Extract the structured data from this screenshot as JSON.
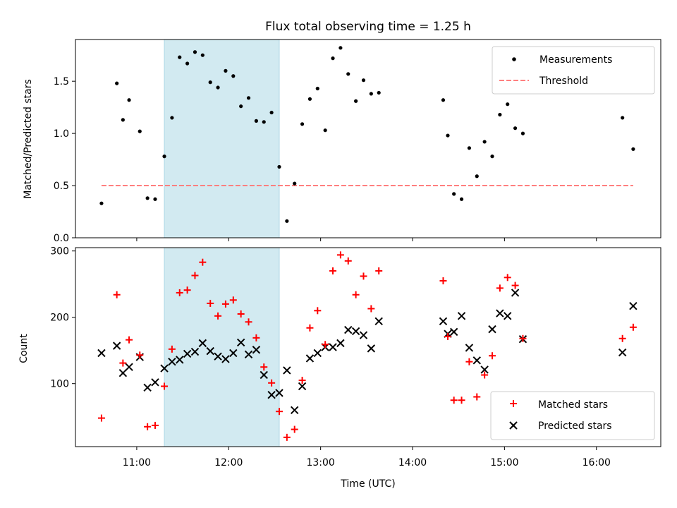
{
  "chart_data": [
    {
      "type": "scatter",
      "title": "Flux total observing time = 1.25 h",
      "xlabel": "",
      "ylabel": "Matched/Predicted stars",
      "ylim": [
        0,
        1.9
      ],
      "yticks": [
        "0.0",
        "0.5",
        "1.0",
        "1.5"
      ],
      "grid": false,
      "legend_position": "top-right",
      "shaded_interval": [
        "11:18",
        "12:33"
      ],
      "shade_color": "#add8e6",
      "series": [
        {
          "name": "Measurements",
          "marker": "dot",
          "color": "#000000",
          "x": [
            "10:37",
            "10:47",
            "10:51",
            "10:55",
            "11:02",
            "11:07",
            "11:12",
            "11:18",
            "11:23",
            "11:28",
            "11:33",
            "11:38",
            "11:43",
            "11:48",
            "11:53",
            "11:58",
            "12:03",
            "12:08",
            "12:13",
            "12:18",
            "12:23",
            "12:28",
            "12:33",
            "12:38",
            "12:43",
            "12:48",
            "12:53",
            "12:58",
            "13:03",
            "13:08",
            "13:13",
            "13:18",
            "13:23",
            "13:28",
            "13:33",
            "13:38",
            "14:20",
            "14:23",
            "14:27",
            "14:32",
            "14:37",
            "14:42",
            "14:47",
            "14:52",
            "14:57",
            "15:02",
            "15:07",
            "15:12",
            "16:17",
            "16:24"
          ],
          "y": [
            0.33,
            1.48,
            1.13,
            1.32,
            1.02,
            0.38,
            0.37,
            0.78,
            1.15,
            1.73,
            1.67,
            1.78,
            1.75,
            1.49,
            1.44,
            1.6,
            1.55,
            1.26,
            1.34,
            1.12,
            1.11,
            1.2,
            0.68,
            0.16,
            0.52,
            1.09,
            1.33,
            1.43,
            1.03,
            1.72,
            1.82,
            1.57,
            1.31,
            1.51,
            1.38,
            1.39,
            1.32,
            0.98,
            0.42,
            0.37,
            0.86,
            0.59,
            0.92,
            0.78,
            1.18,
            1.28,
            1.05,
            1.0,
            1.15,
            0.85
          ]
        },
        {
          "name": "Threshold",
          "type": "line",
          "style": "dashed",
          "color": "#ff7f7f",
          "x": [
            "10:37",
            "16:24"
          ],
          "y": [
            0.5,
            0.5
          ]
        }
      ]
    },
    {
      "type": "scatter",
      "xlabel": "Time (UTC)",
      "ylabel": "Count",
      "ylim": [
        5,
        305
      ],
      "yticks": [
        "100",
        "200",
        "300"
      ],
      "xticks": [
        "11:00",
        "12:00",
        "13:00",
        "14:00",
        "15:00",
        "16:00"
      ],
      "xlim": [
        "10:20",
        "16:42"
      ],
      "grid": false,
      "legend_position": "bottom-right",
      "shaded_interval": [
        "11:18",
        "12:33"
      ],
      "shade_color": "#add8e6",
      "series": [
        {
          "name": "Matched stars",
          "marker": "plus",
          "color": "#ff0000",
          "x": [
            "10:37",
            "10:47",
            "10:51",
            "10:55",
            "11:02",
            "11:07",
            "11:12",
            "11:18",
            "11:23",
            "11:28",
            "11:33",
            "11:38",
            "11:43",
            "11:48",
            "11:53",
            "11:58",
            "12:03",
            "12:08",
            "12:13",
            "12:18",
            "12:23",
            "12:28",
            "12:33",
            "12:38",
            "12:43",
            "12:48",
            "12:53",
            "12:58",
            "13:03",
            "13:08",
            "13:13",
            "13:18",
            "13:23",
            "13:28",
            "13:33",
            "13:38",
            "14:20",
            "14:23",
            "14:27",
            "14:32",
            "14:37",
            "14:42",
            "14:47",
            "14:52",
            "14:57",
            "15:02",
            "15:07",
            "15:12",
            "16:17",
            "16:24"
          ],
          "y": [
            48,
            234,
            131,
            166,
            143,
            35,
            37,
            96,
            152,
            237,
            241,
            263,
            283,
            221,
            202,
            220,
            226,
            205,
            193,
            169,
            125,
            101,
            58,
            19,
            31,
            105,
            184,
            210,
            159,
            270,
            294,
            285,
            234,
            262,
            213,
            270,
            255,
            171,
            75,
            75,
            133,
            80,
            113,
            142,
            244,
            260,
            248,
            168,
            168,
            185
          ]
        },
        {
          "name": "Predicted stars",
          "marker": "x",
          "color": "#000000",
          "x": [
            "10:37",
            "10:47",
            "10:51",
            "10:55",
            "11:02",
            "11:07",
            "11:12",
            "11:18",
            "11:23",
            "11:28",
            "11:33",
            "11:38",
            "11:43",
            "11:48",
            "11:53",
            "11:58",
            "12:03",
            "12:08",
            "12:13",
            "12:18",
            "12:23",
            "12:28",
            "12:33",
            "12:38",
            "12:43",
            "12:48",
            "12:53",
            "12:58",
            "13:03",
            "13:08",
            "13:13",
            "13:18",
            "13:23",
            "13:28",
            "13:33",
            "13:38",
            "14:20",
            "14:23",
            "14:27",
            "14:32",
            "14:37",
            "14:42",
            "14:47",
            "14:52",
            "14:57",
            "15:02",
            "15:07",
            "15:12",
            "16:17",
            "16:24"
          ],
          "y": [
            146,
            157,
            116,
            125,
            140,
            94,
            102,
            123,
            133,
            136,
            145,
            148,
            161,
            149,
            141,
            137,
            146,
            162,
            144,
            151,
            113,
            83,
            86,
            120,
            60,
            96,
            138,
            146,
            155,
            155,
            161,
            181,
            179,
            173,
            153,
            194,
            194,
            175,
            178,
            202,
            154,
            135,
            121,
            182,
            206,
            202,
            237,
            167,
            147,
            217
          ]
        }
      ]
    }
  ]
}
